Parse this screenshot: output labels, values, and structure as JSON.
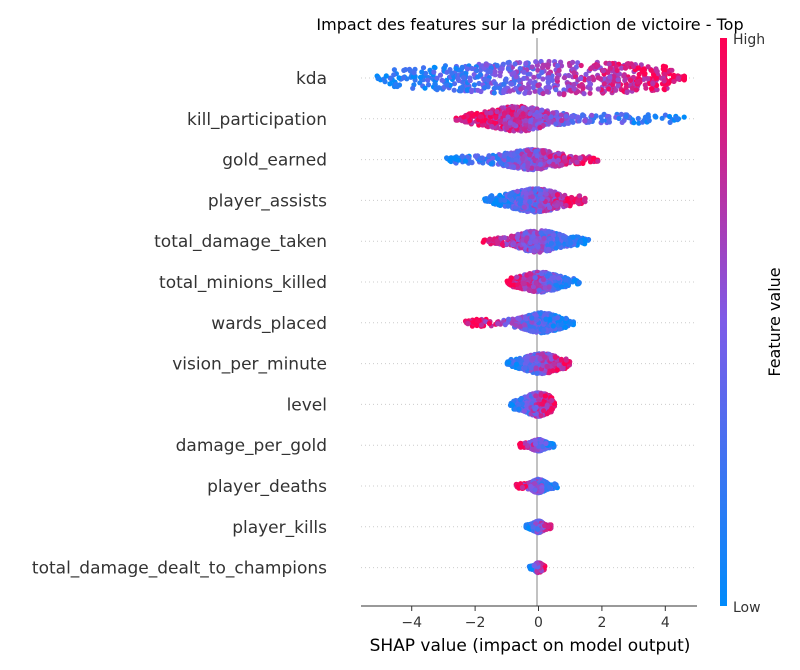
{
  "chart_data": {
    "type": "scatter",
    "subtype": "shap-beeswarm",
    "title": "Impact des features sur la prédiction de victoire - Top",
    "xlabel": "SHAP value (impact on model output)",
    "xlim": [
      -5.6,
      5.0
    ],
    "xticks": [
      -4,
      -2,
      0,
      2,
      4
    ],
    "xtick_labels": [
      "−4",
      "−2",
      "0",
      "2",
      "4"
    ],
    "colorbar": {
      "title": "Feature value",
      "high_label": "High",
      "low_label": "Low",
      "low_color": "#008bfb",
      "high_color": "#ff0052"
    },
    "features": [
      {
        "name": "kda",
        "min": -5.1,
        "max": 4.6,
        "low_side": "left",
        "width": 1.0,
        "core": [
          -3.4,
          4.3
        ]
      },
      {
        "name": "kill_participation",
        "min": -2.6,
        "max": 4.6,
        "low_side": "right",
        "width": 0.75,
        "core": [
          -1.5,
          0.2
        ]
      },
      {
        "name": "gold_earned",
        "min": -2.9,
        "max": 1.9,
        "low_side": "left",
        "width": 0.6,
        "core": [
          -1.0,
          0.6
        ]
      },
      {
        "name": "player_assists",
        "min": -1.7,
        "max": 1.5,
        "low_side": "left",
        "width": 0.7,
        "core": [
          -0.8,
          0.6
        ]
      },
      {
        "name": "total_damage_taken",
        "min": -1.8,
        "max": 1.6,
        "low_side": "right",
        "width": 0.65,
        "core": [
          -0.6,
          0.6
        ]
      },
      {
        "name": "total_minions_killed",
        "min": -1.0,
        "max": 1.3,
        "low_side": "right",
        "width": 0.6,
        "core": [
          -0.5,
          0.6
        ]
      },
      {
        "name": "wards_placed",
        "min": -2.3,
        "max": 1.1,
        "low_side": "right",
        "width": 0.6,
        "core": [
          -0.4,
          0.6
        ]
      },
      {
        "name": "vision_per_minute",
        "min": -1.0,
        "max": 1.0,
        "low_side": "left",
        "width": 0.6,
        "core": [
          -0.4,
          0.6
        ]
      },
      {
        "name": "level",
        "min": -0.9,
        "max": 0.5,
        "low_side": "left",
        "width": 0.7,
        "core": [
          -0.4,
          0.4
        ]
      },
      {
        "name": "damage_per_gold",
        "min": -0.6,
        "max": 0.5,
        "low_side": "right",
        "width": 0.35,
        "core": [
          -0.2,
          0.2
        ]
      },
      {
        "name": "player_deaths",
        "min": -0.7,
        "max": 0.6,
        "low_side": "right",
        "width": 0.4,
        "core": [
          -0.2,
          0.2
        ]
      },
      {
        "name": "player_kills",
        "min": -0.4,
        "max": 0.4,
        "low_side": "left",
        "width": 0.35,
        "core": [
          -0.15,
          0.15
        ]
      },
      {
        "name": "total_damage_dealt_to_champions",
        "min": -0.3,
        "max": 0.2,
        "low_side": "left",
        "width": 0.3,
        "core": [
          -0.1,
          0.1
        ]
      }
    ]
  }
}
